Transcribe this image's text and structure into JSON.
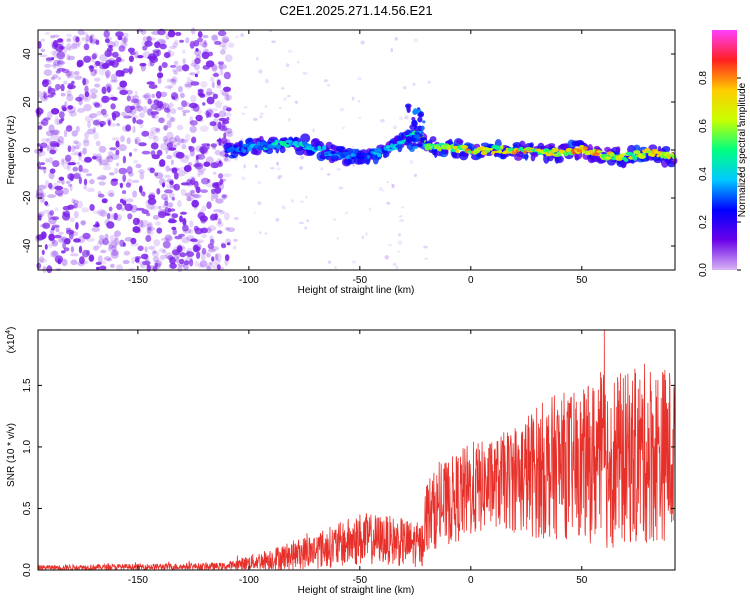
{
  "title": "C2E1.2025.271.14.56.E21",
  "colors": {
    "axis": "#000000",
    "snr_line": "#e8302a",
    "scatter_noise": "#7a1fe8",
    "background": "#ffffff"
  },
  "chart_data": [
    {
      "type": "heatmap",
      "name": "spectrogram",
      "xlabel": "Height of straight line (km)",
      "ylabel": "Frequency (Hz)",
      "xlim": [
        -195,
        92
      ],
      "ylim": [
        -50,
        50
      ],
      "xticks": [
        -150,
        -100,
        -50,
        0,
        50
      ],
      "yticks": [
        -40,
        -20,
        0,
        20,
        40
      ],
      "xtick_labels": [
        "-150",
        "-100",
        "-50",
        "0",
        "50"
      ],
      "ytick_labels": [
        "-40",
        "-20",
        "0",
        "20",
        "40"
      ],
      "colorbar": {
        "label": "Normalized spectral amplitude",
        "range": [
          0,
          1
        ],
        "ticks": [
          0.0,
          0.2,
          0.4,
          0.6,
          0.8
        ],
        "tick_labels": [
          "0.0",
          "0.2",
          "0.4",
          "0.6",
          "0.8"
        ],
        "colormap": [
          "#d9b6f5",
          "#6a00e8",
          "#0000ff",
          "#00c8ff",
          "#00ff80",
          "#c8ff00",
          "#ffcc00",
          "#ff2020",
          "#ff40ff"
        ]
      },
      "noise_region_x": [
        -195,
        -108
      ],
      "signal_trace": {
        "x": [
          -110,
          -100,
          -90,
          -80,
          -70,
          -60,
          -50,
          -40,
          -30,
          -25,
          -20,
          -10,
          0,
          10,
          20,
          30,
          40,
          50,
          60,
          70,
          80,
          90
        ],
        "freq": [
          0,
          1,
          2,
          3,
          1,
          -2,
          -3,
          -1,
          3,
          8,
          2,
          1,
          0,
          0,
          0,
          -1,
          -1,
          0,
          -2,
          -3,
          -1,
          -3
        ],
        "amplitude": [
          0.25,
          0.35,
          0.4,
          0.45,
          0.35,
          0.3,
          0.3,
          0.35,
          0.4,
          0.45,
          0.55,
          0.6,
          0.7,
          0.65,
          0.7,
          0.65,
          0.7,
          0.75,
          0.7,
          0.65,
          0.7,
          0.65
        ]
      },
      "spike": {
        "x": -25,
        "freq_range": [
          0,
          20
        ]
      }
    },
    {
      "type": "line",
      "name": "snr",
      "xlabel": "Height of straight line (km)",
      "ylabel": "SNR (10 * v/v)",
      "multiplier_label": "(x10",
      "multiplier_exp": "4",
      "multiplier_close": ")",
      "xlim": [
        -195,
        92
      ],
      "ylim": [
        0,
        1.95
      ],
      "xticks": [
        -150,
        -100,
        -50,
        0,
        50
      ],
      "yticks": [
        0.0,
        0.5,
        1.0,
        1.5
      ],
      "xtick_labels": [
        "-150",
        "-100",
        "-50",
        "0",
        "50"
      ],
      "ytick_labels": [
        "0.0",
        "0.5",
        "1.0",
        "1.5"
      ],
      "envelope": {
        "x": [
          -195,
          -110,
          -100,
          -80,
          -60,
          -50,
          -40,
          -30,
          -22,
          -20,
          -10,
          0,
          10,
          20,
          30,
          40,
          50,
          60,
          70,
          80,
          92
        ],
        "mean": [
          0.02,
          0.03,
          0.06,
          0.12,
          0.2,
          0.25,
          0.25,
          0.22,
          0.2,
          0.45,
          0.55,
          0.65,
          0.7,
          0.75,
          0.8,
          0.85,
          0.85,
          0.9,
          0.9,
          0.95,
          0.95
        ],
        "amp": [
          0.02,
          0.03,
          0.06,
          0.12,
          0.18,
          0.22,
          0.2,
          0.2,
          0.18,
          0.3,
          0.35,
          0.4,
          0.35,
          0.45,
          0.55,
          0.6,
          0.6,
          0.75,
          0.7,
          0.75,
          0.7
        ]
      }
    }
  ]
}
